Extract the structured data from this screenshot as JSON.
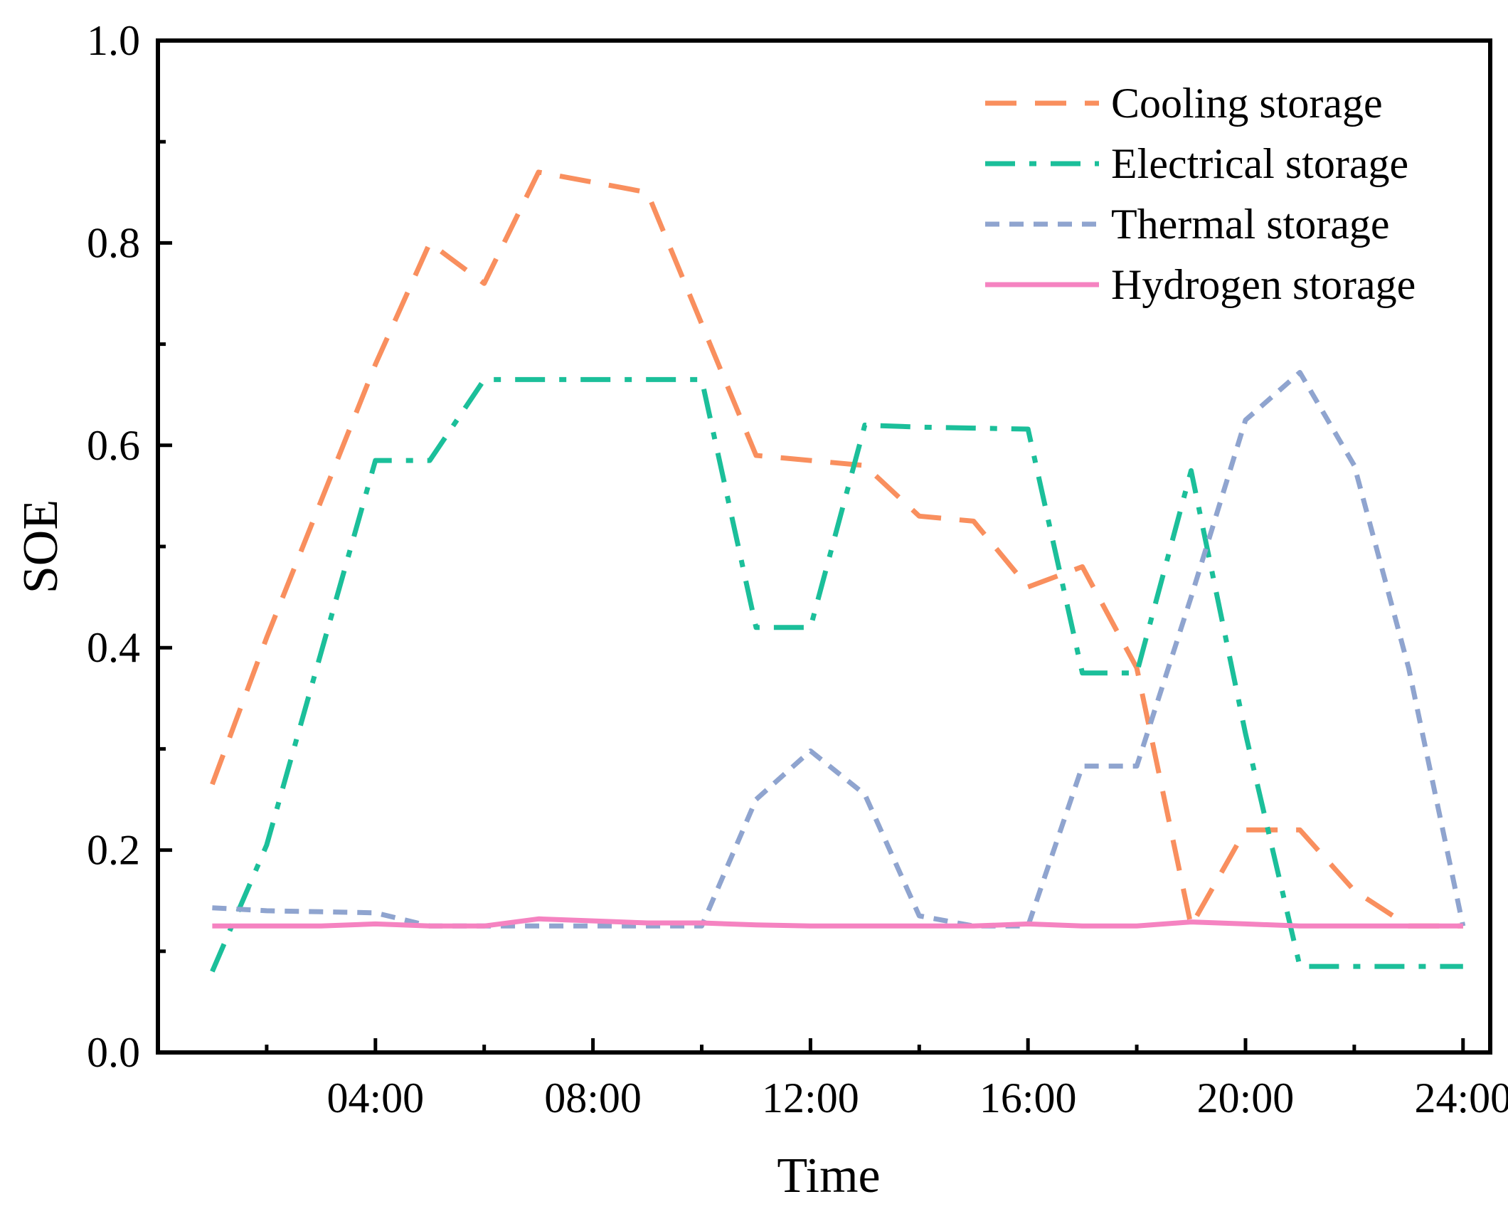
{
  "chart_data": {
    "type": "line",
    "title": "",
    "xlabel": "Time",
    "ylabel": "SOE",
    "xlim": [
      0,
      24.5
    ],
    "ylim": [
      0,
      1.0
    ],
    "x_major_ticks": [
      4,
      8,
      12,
      16,
      20,
      24
    ],
    "x_tick_labels": [
      "04:00",
      "08:00",
      "12:00",
      "16:00",
      "20:00",
      "24:00"
    ],
    "x_minor_ticks": [
      2,
      6,
      10,
      14,
      18,
      22
    ],
    "y_major_ticks": [
      0.0,
      0.2,
      0.4,
      0.6,
      0.8,
      1.0
    ],
    "y_tick_labels": [
      "0.0",
      "0.2",
      "0.4",
      "0.6",
      "0.8",
      "1.0"
    ],
    "y_minor_ticks": [
      0.1,
      0.3,
      0.5,
      0.7,
      0.9
    ],
    "grid": false,
    "legend_position": "top-right",
    "x": [
      1,
      2,
      3,
      4,
      5,
      6,
      7,
      8,
      9,
      10,
      11,
      12,
      13,
      14,
      15,
      16,
      17,
      18,
      19,
      20,
      21,
      22,
      23,
      24
    ],
    "series": [
      {
        "name": "Cooling storage",
        "color": "#f98f5e",
        "dash": "dashed",
        "values": [
          0.265,
          0.41,
          0.545,
          0.68,
          0.8,
          0.76,
          0.87,
          0.86,
          0.85,
          0.72,
          0.59,
          0.585,
          0.58,
          0.53,
          0.525,
          0.46,
          0.48,
          0.38,
          0.125,
          0.22,
          0.22,
          0.16,
          0.125,
          0.125
        ]
      },
      {
        "name": "Electrical storage",
        "color": "#1bbf9a",
        "dash": "dashdot",
        "values": [
          0.08,
          0.205,
          0.395,
          0.585,
          0.585,
          0.665,
          0.665,
          0.665,
          0.665,
          0.665,
          0.42,
          0.42,
          0.62,
          0.618,
          0.617,
          0.616,
          0.375,
          0.375,
          0.575,
          0.315,
          0.085,
          0.085,
          0.085,
          0.085
        ]
      },
      {
        "name": "Thermal storage",
        "color": "#8fa4cf",
        "dash": "shortdash",
        "values": [
          0.143,
          0.14,
          0.139,
          0.138,
          0.125,
          0.125,
          0.125,
          0.125,
          0.125,
          0.125,
          0.25,
          0.298,
          0.255,
          0.135,
          0.125,
          0.125,
          0.283,
          0.283,
          0.45,
          0.625,
          0.672,
          0.58,
          0.38,
          0.125
        ]
      },
      {
        "name": "Hydrogen storage",
        "color": "#f583c1",
        "dash": "solid",
        "values": [
          0.125,
          0.125,
          0.125,
          0.127,
          0.125,
          0.125,
          0.132,
          0.13,
          0.128,
          0.128,
          0.126,
          0.125,
          0.125,
          0.125,
          0.125,
          0.127,
          0.125,
          0.125,
          0.129,
          0.127,
          0.125,
          0.125,
          0.125,
          0.125
        ]
      }
    ]
  }
}
